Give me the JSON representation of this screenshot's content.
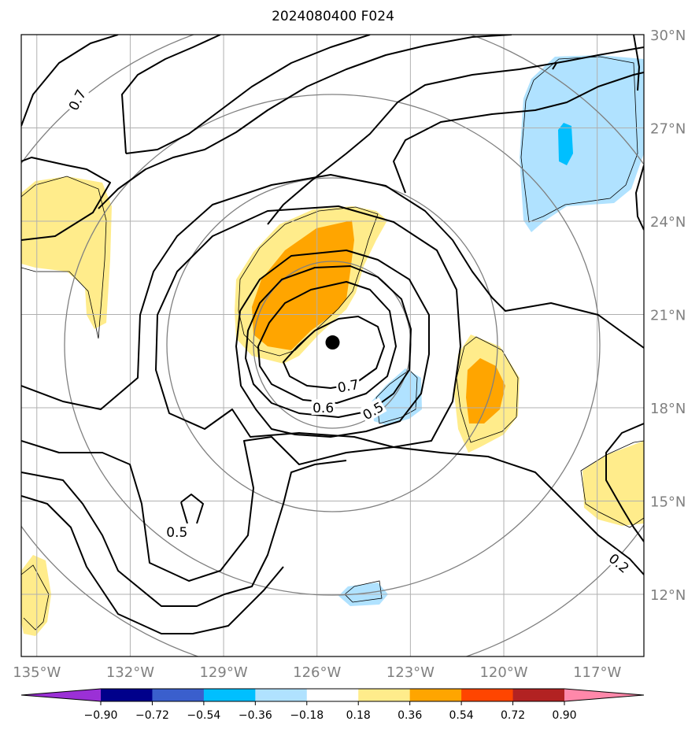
{
  "title": "2024080400 F024",
  "map": {
    "lon_range": [
      -135.5,
      -115.5
    ],
    "lat_range": [
      10,
      30
    ],
    "lon_ticks": [
      {
        "value": -135,
        "label": "135°W"
      },
      {
        "value": -132,
        "label": "132°W"
      },
      {
        "value": -129,
        "label": "129°W"
      },
      {
        "value": -126,
        "label": "126°W"
      },
      {
        "value": -123,
        "label": "123°W"
      },
      {
        "value": -120,
        "label": "120°W"
      },
      {
        "value": -117,
        "label": "117°W"
      }
    ],
    "lat_ticks": [
      {
        "value": 12,
        "label": "12°N"
      },
      {
        "value": 15,
        "label": "15°N"
      },
      {
        "value": 18,
        "label": "18°N"
      },
      {
        "value": 21,
        "label": "21°N"
      },
      {
        "value": 24,
        "label": "24°N"
      },
      {
        "value": 27,
        "label": "27°N"
      },
      {
        "value": 30,
        "label": "30°N"
      }
    ],
    "storm_center": {
      "lon": -125.5,
      "lat": 20.1
    },
    "contour_labels": [
      {
        "text": "0.7",
        "lon": -133.7,
        "lat": 27.9,
        "rotate": -62
      },
      {
        "text": "0.7",
        "lon": -125.0,
        "lat": 18.7,
        "rotate": -10
      },
      {
        "text": "0.6",
        "lon": -125.8,
        "lat": 18.0,
        "rotate": 0
      },
      {
        "text": "0.5",
        "lon": -124.2,
        "lat": 17.9,
        "rotate": -30
      },
      {
        "text": "0.5",
        "lon": -130.5,
        "lat": 14.0,
        "rotate": 0
      },
      {
        "text": "0.2",
        "lon": -116.3,
        "lat": 13.0,
        "rotate": 40
      }
    ]
  },
  "colorbar": {
    "colors": [
      "#9b30d6",
      "#00008b",
      "#3a5fcd",
      "#00bfff",
      "#b0e2ff",
      "#ffffff",
      "#ffec8b",
      "#ffa500",
      "#ff4500",
      "#b22222",
      "#ff88aa"
    ],
    "tick_labels": [
      "−0.90",
      "−0.72",
      "−0.54",
      "−0.36",
      "−0.18",
      "0.18",
      "0.36",
      "0.54",
      "0.72",
      "0.90"
    ]
  }
}
